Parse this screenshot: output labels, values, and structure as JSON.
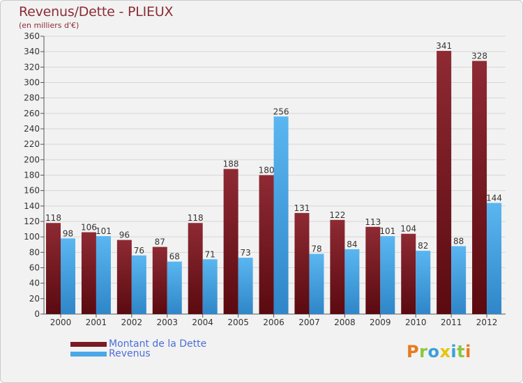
{
  "chart_data": {
    "type": "bar",
    "title": "Revenus/Dette - PLIEUX",
    "subtitle": "(en milliers d'€)",
    "categories": [
      "2000",
      "2001",
      "2002",
      "2003",
      "2004",
      "2005",
      "2006",
      "2007",
      "2008",
      "2009",
      "2010",
      "2011",
      "2012"
    ],
    "series": [
      {
        "name": "Montant de la Dette",
        "color": "#7a1a22",
        "values": [
          118,
          106,
          96,
          87,
          118,
          188,
          180,
          131,
          122,
          113,
          104,
          341,
          328
        ]
      },
      {
        "name": "Revenus",
        "color": "#4aa8e8",
        "values": [
          98,
          101,
          76,
          68,
          71,
          73,
          256,
          78,
          84,
          101,
          82,
          88,
          144
        ]
      }
    ],
    "ylim": [
      0,
      360
    ],
    "ytick_step": 20,
    "grid": true,
    "legend": "bottom-left"
  },
  "logo": {
    "text": "Proxiti",
    "colors": [
      "#e87a1e",
      "#8bc63e",
      "#3aa0d8",
      "#e6c40e",
      "#3aa0d8",
      "#8bc63e",
      "#e87a1e"
    ]
  }
}
